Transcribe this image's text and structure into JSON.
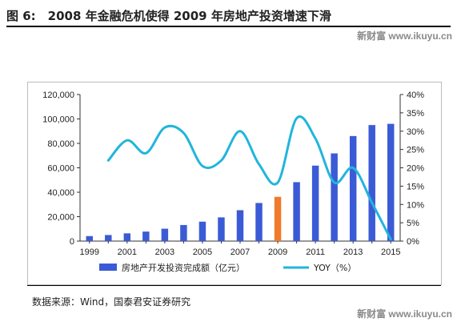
{
  "figure": {
    "title": "图 6:　2008 年金融危机使得 2009 年房地产投资增速下滑",
    "source": "数据来源：Wind，国泰君安证券研究"
  },
  "watermark": {
    "top": "新财富 www.ikuyu.cn",
    "bottom": "新财富 www.ikuyu.cn"
  },
  "colors": {
    "bar": "#3b5bd6",
    "bar_highlight": "#f07a2a",
    "line": "#22b5dc"
  },
  "chart_data": {
    "type": "bar",
    "x_tick_labels": [
      "1999",
      "2001",
      "2003",
      "2005",
      "2007",
      "2009",
      "2011",
      "2013",
      "2015"
    ],
    "x": [
      1999,
      2000,
      2001,
      2002,
      2003,
      2004,
      2005,
      2006,
      2007,
      2008,
      2009,
      2010,
      2011,
      2012,
      2013,
      2014,
      2015
    ],
    "highlight_x": 2009,
    "y_left": {
      "ticks": [
        "0",
        "20,000",
        "40,000",
        "60,000",
        "80,000",
        "100,000",
        "120,000"
      ],
      "lim": [
        0,
        120000
      ]
    },
    "y_right": {
      "ticks": [
        "0%",
        "5%",
        "10%",
        "15%",
        "20%",
        "25%",
        "30%",
        "35%",
        "40%"
      ],
      "lim": [
        0,
        40
      ]
    },
    "series": [
      {
        "name": "房地产开发投资完成额（亿元）",
        "type": "bar",
        "axis": "left",
        "values": [
          4100,
          4980,
          6340,
          7790,
          10150,
          13160,
          15910,
          19420,
          25290,
          31200,
          36230,
          48260,
          61800,
          71800,
          86000,
          95000,
          96000
        ]
      },
      {
        "name": "YOY（%）",
        "type": "line",
        "axis": "right",
        "x": [
          2000,
          2001,
          2002,
          2003,
          2004,
          2005,
          2006,
          2007,
          2008,
          2009,
          2010,
          2011,
          2012,
          2013,
          2014,
          2015
        ],
        "values": [
          22.0,
          27.5,
          24.0,
          31.0,
          29.5,
          20.5,
          22.0,
          30.0,
          21.0,
          16.0,
          33.5,
          28.0,
          16.0,
          20.0,
          10.5,
          0.5
        ]
      }
    ]
  }
}
